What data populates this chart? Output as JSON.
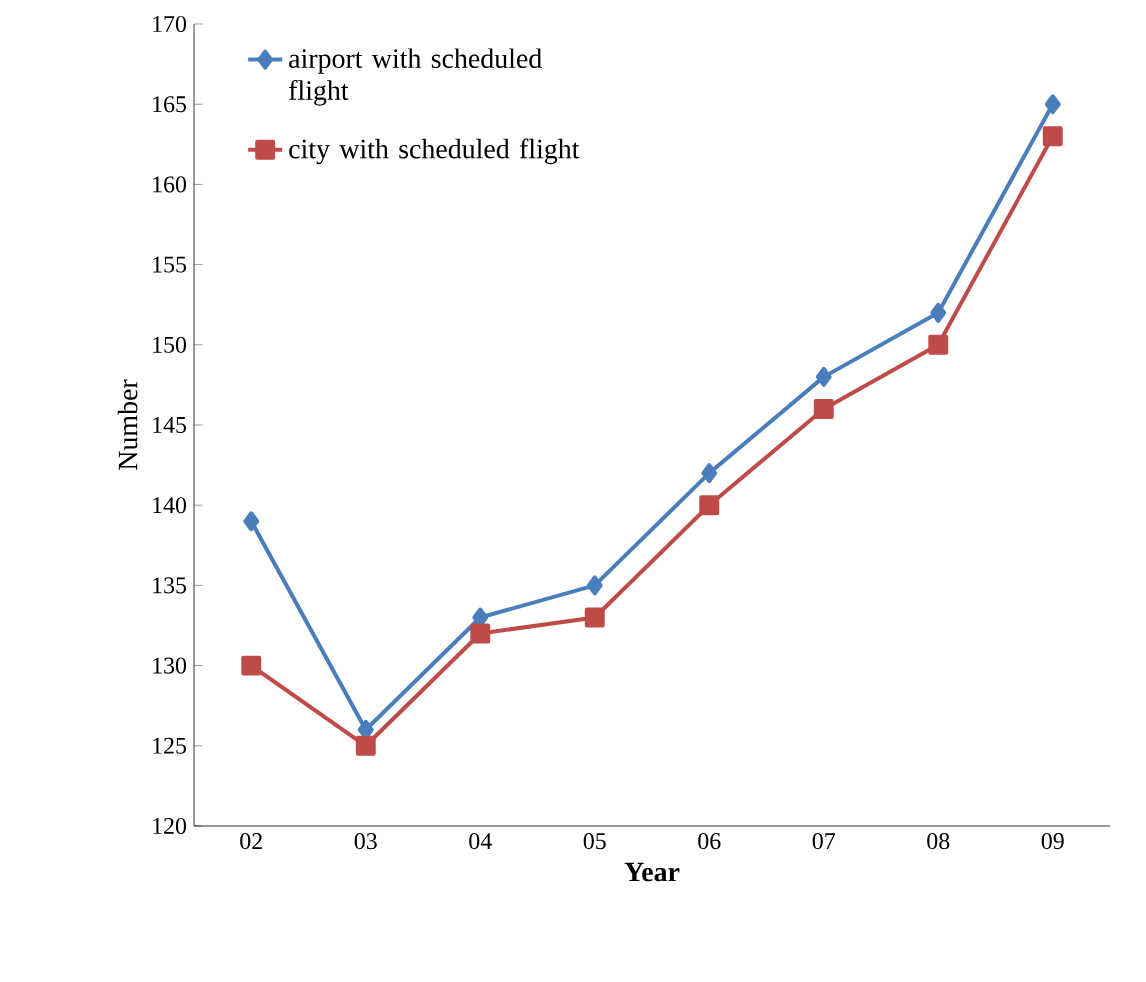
{
  "chart_data": {
    "type": "line",
    "xlabel": "Year",
    "ylabel": "Number",
    "categories": [
      "02",
      "03",
      "04",
      "05",
      "06",
      "07",
      "08",
      "09"
    ],
    "series": [
      {
        "name": "airport with scheduled flight",
        "color": "#4a7ebb",
        "marker": "diamond",
        "values": [
          139,
          126,
          133,
          135,
          142,
          148,
          152,
          165
        ]
      },
      {
        "name": "city with scheduled flight",
        "color": "#be4b48",
        "marker": "square",
        "values": [
          130,
          125,
          132,
          133,
          140,
          146,
          150,
          163
        ]
      }
    ],
    "ylim": [
      120,
      170
    ],
    "yticks": [
      120,
      125,
      130,
      135,
      140,
      145,
      150,
      155,
      160,
      165,
      170
    ],
    "grid": false,
    "legend": "top left"
  }
}
